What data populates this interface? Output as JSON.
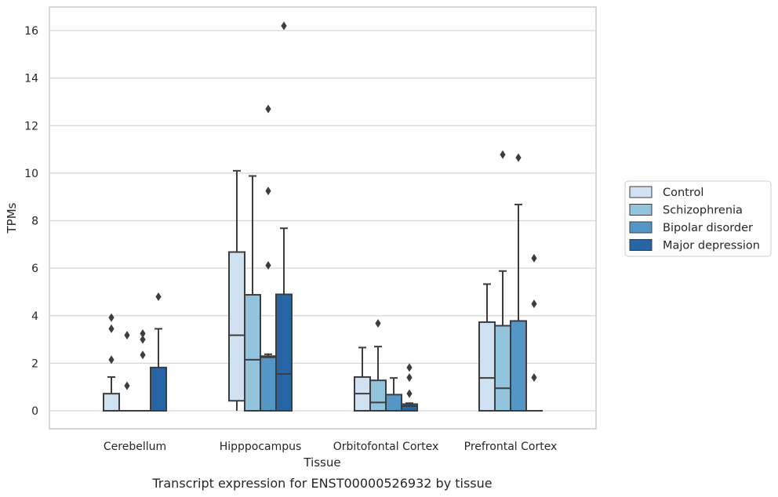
{
  "chart_data": {
    "type": "box",
    "title": "",
    "caption": "Transcript expression for ENST00000526932 by tissue",
    "xlabel": "Tissue",
    "ylabel": "TPMs",
    "ylim": [
      -0.8,
      17
    ],
    "yticks": [
      0,
      2,
      4,
      6,
      8,
      10,
      12,
      14,
      16
    ],
    "grid": "horizontal",
    "legend_position": "right",
    "categories": [
      "Cerebellum",
      "Hipppocampus",
      "Orbitofontal Cortex",
      "Prefrontal Cortex"
    ],
    "series": [
      {
        "name": "Control",
        "color": "#d0e1f1",
        "boxes": [
          {
            "q1": 0,
            "median": 0,
            "q3": 0.72,
            "whislo": 0,
            "whishi": 1.42,
            "fliers": [
              2.15,
              3.45,
              3.92
            ]
          },
          {
            "q1": 0.42,
            "median": 3.18,
            "q3": 6.68,
            "whislo": 0,
            "whishi": 10.1,
            "fliers": []
          },
          {
            "q1": 0,
            "median": 0.72,
            "q3": 1.42,
            "whislo": 0,
            "whishi": 2.66,
            "fliers": []
          },
          {
            "q1": 0,
            "median": 1.38,
            "q3": 3.73,
            "whislo": 0,
            "whishi": 5.33,
            "fliers": []
          }
        ]
      },
      {
        "name": "Schizophrenia",
        "color": "#93c4de",
        "boxes": [
          {
            "q1": 0,
            "median": 0,
            "q3": 0,
            "whislo": 0,
            "whishi": 0,
            "fliers": [
              1.05,
              3.18
            ]
          },
          {
            "q1": 0,
            "median": 2.15,
            "q3": 4.88,
            "whislo": 0,
            "whishi": 9.88,
            "fliers": []
          },
          {
            "q1": 0,
            "median": 0.35,
            "q3": 1.28,
            "whislo": 0,
            "whishi": 2.7,
            "fliers": [
              3.68
            ]
          },
          {
            "q1": 0,
            "median": 0.95,
            "q3": 3.58,
            "whislo": 0,
            "whishi": 5.88,
            "fliers": [
              10.78
            ]
          }
        ]
      },
      {
        "name": "Bipolar disorder",
        "color": "#5497c6",
        "boxes": [
          {
            "q1": 0,
            "median": 0,
            "q3": 0,
            "whislo": 0,
            "whishi": 0,
            "fliers": [
              2.35,
              3.0,
              3.25
            ]
          },
          {
            "q1": 0,
            "median": 2.25,
            "q3": 2.3,
            "whislo": 0,
            "whishi": 2.38,
            "fliers": [
              6.12,
              9.25,
              12.7
            ]
          },
          {
            "q1": 0,
            "median": 0,
            "q3": 0.68,
            "whislo": 0,
            "whishi": 1.38,
            "fliers": []
          },
          {
            "q1": 0,
            "median": 0,
            "q3": 3.78,
            "whislo": 0,
            "whishi": 8.68,
            "fliers": [
              10.65
            ]
          }
        ]
      },
      {
        "name": "Major depression",
        "color": "#2865a5",
        "boxes": [
          {
            "q1": 0,
            "median": 0,
            "q3": 1.82,
            "whislo": 0,
            "whishi": 3.45,
            "fliers": [
              4.8
            ]
          },
          {
            "q1": 0,
            "median": 1.55,
            "q3": 4.9,
            "whislo": 0,
            "whishi": 7.68,
            "fliers": [
              16.2
            ]
          },
          {
            "q1": 0,
            "median": 0.2,
            "q3": 0.28,
            "whislo": 0,
            "whishi": 0.32,
            "fliers": [
              0.72,
              1.4,
              1.82
            ]
          },
          {
            "q1": 0,
            "median": 0,
            "q3": 0,
            "whislo": 0,
            "whishi": 0,
            "fliers": [
              1.4,
              4.5,
              6.42
            ]
          }
        ]
      }
    ]
  }
}
